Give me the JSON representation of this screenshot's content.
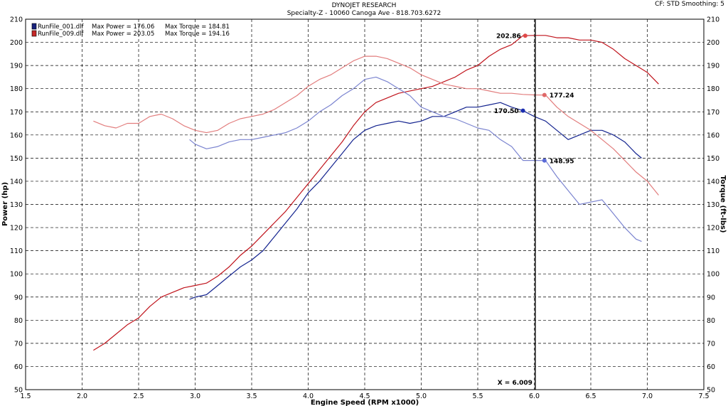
{
  "header": {
    "title": "DYNOJET RESEARCH",
    "subtitle": "Specialty-Z - 10060 Canoga Ave - 818.703.6272",
    "settings": "CF: STD  Smoothing: 5"
  },
  "chart_data": {
    "type": "line",
    "xlabel": "Engine Speed (RPM x1000)",
    "ylabel": "Power (hp)",
    "y2label": "Torque (ft-lbs)",
    "xlim": [
      1.5,
      7.5
    ],
    "ylim": [
      50,
      210
    ],
    "y2lim": [
      50,
      210
    ],
    "x_ticks": [
      "1.5",
      "2.0",
      "2.5",
      "3.0",
      "3.5",
      "4.0",
      "4.5",
      "5.0",
      "5.5",
      "6.0",
      "6.5",
      "7.0",
      "7.5"
    ],
    "y_ticks": [
      "50",
      "60",
      "70",
      "80",
      "90",
      "100",
      "110",
      "120",
      "130",
      "140",
      "150",
      "160",
      "170",
      "180",
      "190",
      "200",
      "210"
    ],
    "grid": true,
    "legend_position": "top-left",
    "legend": [
      {
        "file": "RunFile_001.dlf",
        "power_text": "Max Power = 176.06",
        "torque_text": "Max Torque = 184.81",
        "color": "#1a237e"
      },
      {
        "file": "RunFile_009.dlf",
        "power_text": "Max Power = 203.05",
        "torque_text": "Max Torque = 194.16",
        "color": "#c62828"
      }
    ],
    "cursor": {
      "x": 6.009,
      "label": "X = 6.009"
    },
    "series": [
      {
        "name": "RunFile_001.dlf",
        "measure": "Power",
        "color": "#13238f",
        "axis": "left",
        "x": [
          2.95,
          3.0,
          3.1,
          3.2,
          3.3,
          3.4,
          3.5,
          3.6,
          3.7,
          3.8,
          3.9,
          4.0,
          4.1,
          4.2,
          4.3,
          4.4,
          4.5,
          4.6,
          4.7,
          4.8,
          4.9,
          5.0,
          5.1,
          5.2,
          5.3,
          5.4,
          5.5,
          5.6,
          5.7,
          5.8,
          5.9,
          6.0,
          6.1,
          6.2,
          6.3,
          6.4,
          6.5,
          6.6,
          6.7,
          6.8,
          6.9,
          6.95
        ],
        "y": [
          89,
          90,
          91,
          95,
          99,
          103,
          106,
          110,
          116,
          122,
          128,
          135,
          140,
          146,
          152,
          158,
          162,
          164,
          165,
          166,
          165,
          166,
          168,
          168,
          170,
          172,
          172,
          173,
          174,
          172,
          170.5,
          168,
          166,
          162,
          158,
          160,
          162,
          162,
          160,
          157,
          152,
          150
        ]
      },
      {
        "name": "RunFile_009.dlf",
        "measure": "Power",
        "color": "#c0141c",
        "axis": "left",
        "x": [
          2.1,
          2.2,
          2.3,
          2.4,
          2.5,
          2.6,
          2.7,
          2.8,
          2.9,
          3.0,
          3.1,
          3.2,
          3.3,
          3.4,
          3.5,
          3.6,
          3.7,
          3.8,
          3.9,
          4.0,
          4.1,
          4.2,
          4.3,
          4.4,
          4.5,
          4.6,
          4.7,
          4.8,
          4.9,
          5.0,
          5.1,
          5.2,
          5.3,
          5.4,
          5.5,
          5.6,
          5.7,
          5.8,
          5.9,
          6.0,
          6.1,
          6.2,
          6.3,
          6.4,
          6.5,
          6.6,
          6.7,
          6.8,
          6.9,
          7.0,
          7.1
        ],
        "y": [
          67,
          70,
          74,
          78,
          81,
          86,
          90,
          92,
          94,
          95,
          96,
          99,
          103,
          108,
          112,
          117,
          122,
          127,
          133,
          139,
          145,
          151,
          157,
          164,
          170,
          174,
          176,
          178,
          179,
          180,
          181,
          183,
          185,
          188,
          190,
          194,
          197,
          199,
          202.86,
          203,
          203,
          202,
          202,
          201,
          201,
          200,
          197,
          193,
          190,
          187,
          182
        ]
      },
      {
        "name": "RunFile_001.dlf",
        "measure": "Torque",
        "color": "#7b84d0",
        "axis": "right",
        "x": [
          2.95,
          3.0,
          3.1,
          3.2,
          3.3,
          3.4,
          3.5,
          3.6,
          3.7,
          3.8,
          3.9,
          4.0,
          4.1,
          4.2,
          4.3,
          4.4,
          4.5,
          4.6,
          4.7,
          4.8,
          4.9,
          5.0,
          5.1,
          5.2,
          5.3,
          5.4,
          5.5,
          5.6,
          5.7,
          5.8,
          5.9,
          6.0,
          6.1,
          6.2,
          6.3,
          6.4,
          6.5,
          6.6,
          6.7,
          6.8,
          6.9,
          6.95
        ],
        "y": [
          158,
          156,
          154,
          155,
          157,
          158,
          158,
          159,
          160,
          161,
          163,
          166,
          170,
          173,
          177,
          180,
          184,
          185,
          183,
          180,
          177,
          172,
          170,
          168,
          167,
          165,
          163,
          162,
          158,
          155,
          149,
          149,
          148.95,
          142,
          136,
          130,
          131,
          132,
          126,
          120,
          115,
          114
        ]
      },
      {
        "name": "RunFile_009.dlf",
        "measure": "Torque",
        "color": "#e27d7d",
        "axis": "right",
        "x": [
          2.1,
          2.2,
          2.3,
          2.4,
          2.5,
          2.6,
          2.7,
          2.8,
          2.9,
          3.0,
          3.1,
          3.2,
          3.3,
          3.4,
          3.5,
          3.6,
          3.7,
          3.8,
          3.9,
          4.0,
          4.1,
          4.2,
          4.3,
          4.4,
          4.5,
          4.6,
          4.7,
          4.8,
          4.9,
          5.0,
          5.1,
          5.2,
          5.3,
          5.4,
          5.5,
          5.6,
          5.7,
          5.8,
          5.9,
          6.0,
          6.1,
          6.2,
          6.3,
          6.4,
          6.5,
          6.6,
          6.7,
          6.8,
          6.9,
          7.0,
          7.1
        ],
        "y": [
          166,
          164,
          163,
          165,
          165,
          168,
          169,
          167,
          164,
          162,
          161,
          162,
          165,
          167,
          168,
          169,
          171,
          174,
          177,
          181,
          184,
          186,
          189,
          192,
          194,
          194,
          193,
          191,
          189,
          186,
          184,
          182,
          181,
          180,
          180,
          179,
          178,
          178,
          177.5,
          177.3,
          177.24,
          172,
          168,
          165,
          162,
          158,
          154,
          149,
          144,
          140,
          134
        ]
      }
    ],
    "markers": [
      {
        "x": 5.92,
        "y": 202.86,
        "label": "202.86",
        "color": "#e04848",
        "axis": "left",
        "label_side": "left"
      },
      {
        "x": 5.9,
        "y": 170.5,
        "label": "170.50",
        "color": "#1a2db0",
        "axis": "left",
        "label_side": "left"
      },
      {
        "x": 6.09,
        "y": 177.24,
        "label": "177.24",
        "color": "#e06868",
        "axis": "right",
        "label_side": "right"
      },
      {
        "x": 6.09,
        "y": 148.95,
        "label": "148.95",
        "color": "#5a6ad8",
        "axis": "right",
        "label_side": "right"
      }
    ]
  }
}
